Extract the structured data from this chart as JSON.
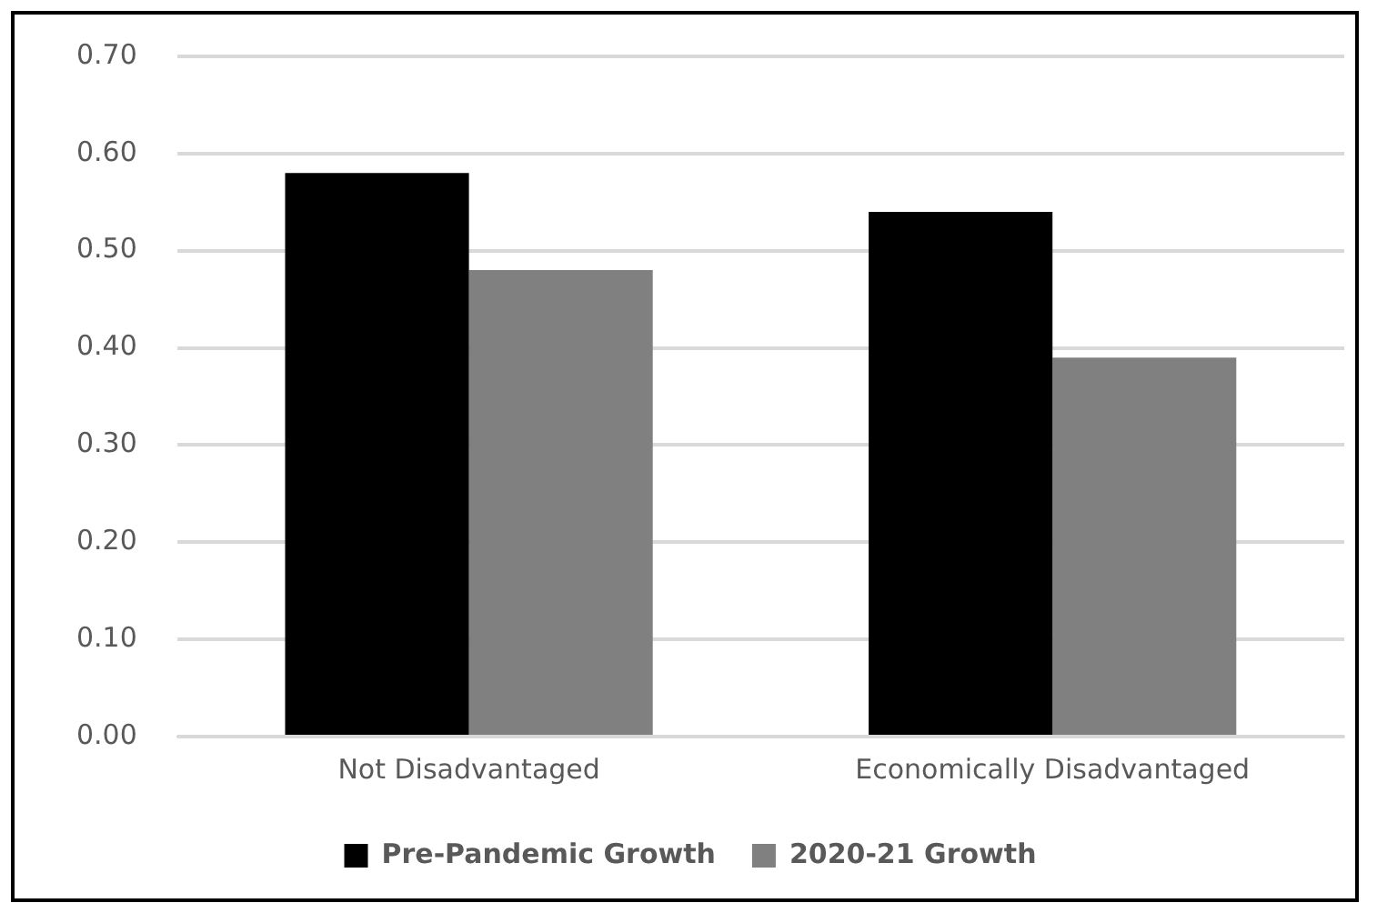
{
  "chart_data": {
    "type": "bar",
    "categories": [
      "Not Disadvantaged",
      "Economically Disadvantaged"
    ],
    "series": [
      {
        "name": "Pre-Pandemic Growth",
        "color": "#000000",
        "values": [
          0.58,
          0.54
        ]
      },
      {
        "name": "2020-21 Growth",
        "color": "#808080",
        "values": [
          0.48,
          0.39
        ]
      }
    ],
    "ylim": [
      0,
      0.7
    ],
    "yticks": [
      {
        "value": 0,
        "label": "0.00"
      },
      {
        "value": 0.1,
        "label": "0.10"
      },
      {
        "value": 0.2,
        "label": "0.20"
      },
      {
        "value": 0.3,
        "label": "0.30"
      },
      {
        "value": 0.4,
        "label": "0.40"
      },
      {
        "value": 0.5,
        "label": "0.50"
      },
      {
        "value": 0.6,
        "label": "0.60"
      },
      {
        "value": 0.7,
        "label": "0.70"
      }
    ],
    "grid": "y",
    "legend": "bottom"
  }
}
